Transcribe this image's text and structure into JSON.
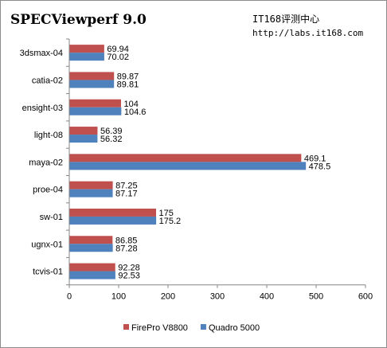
{
  "header": {
    "title": "SPECViewperf 9.0",
    "watermark_line1": "IT168评测中心",
    "watermark_line2": "http://labs.it168.com"
  },
  "colors": {
    "series1": "#c0504d",
    "series2": "#4f81bd",
    "axis": "#868686",
    "grid": "#d9d9d9",
    "text": "#000000"
  },
  "chart_data": {
    "type": "bar",
    "orientation": "horizontal",
    "title": "SPECViewperf 9.0",
    "categories": [
      "3dsmax-04",
      "catia-02",
      "ensight-03",
      "light-08",
      "maya-02",
      "proe-04",
      "sw-01",
      "ugnx-01",
      "tcvis-01"
    ],
    "series": [
      {
        "name": "FirePro V8800",
        "color": "#c0504d",
        "values": [
          69.94,
          89.87,
          104,
          56.39,
          469.1,
          87.25,
          175,
          86.85,
          92.28
        ],
        "labels": [
          "69.94",
          "89.87",
          "104",
          "56.39",
          "469.1",
          "87.25",
          "175",
          "86.85",
          "92.28"
        ]
      },
      {
        "name": "Quadro 5000",
        "color": "#4f81bd",
        "values": [
          70.02,
          89.81,
          104.6,
          56.32,
          478.5,
          87.17,
          175.2,
          87.28,
          92.53
        ],
        "labels": [
          "70.02",
          "89.81",
          "104.6",
          "56.32",
          "478.5",
          "87.17",
          "175.2",
          "87.28",
          "92.53"
        ]
      }
    ],
    "xlim": [
      0,
      600
    ],
    "xticks": [
      0,
      100,
      200,
      300,
      400,
      500,
      600
    ],
    "xtick_labels": [
      "0",
      "100",
      "200",
      "300",
      "400",
      "500",
      "600"
    ],
    "xlabel": "",
    "ylabel": "",
    "grid": false,
    "legend_position": "bottom"
  }
}
